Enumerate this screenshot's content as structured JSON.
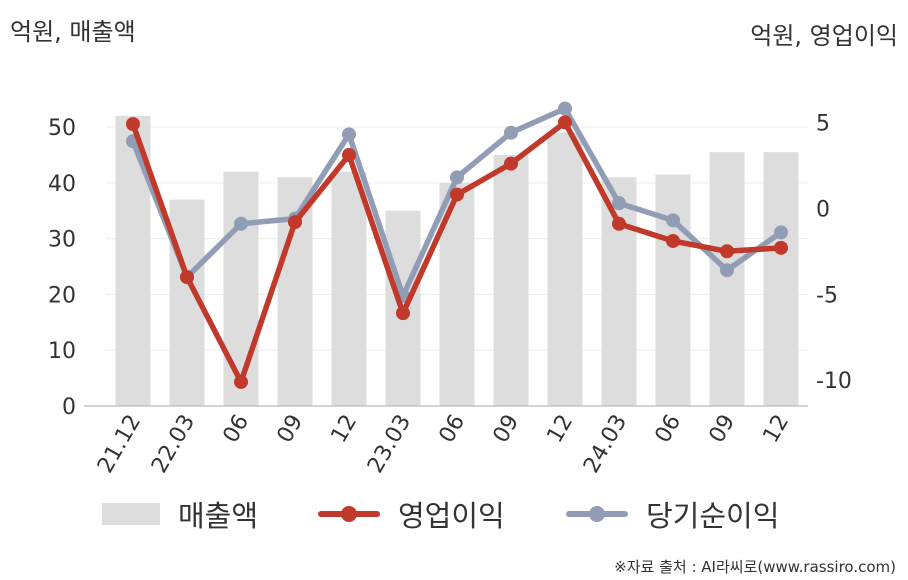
{
  "chart_data": {
    "type": "bar+line",
    "categories": [
      "21.12",
      "22.03",
      "06",
      "09",
      "12",
      "23.03",
      "06",
      "09",
      "12",
      "24.03",
      "06",
      "09",
      "12"
    ],
    "ylabel_left": "억원, 매출액",
    "ylabel_right": "억원, 영업이익",
    "y_left": {
      "min": 0,
      "max": 57,
      "ticks": [
        0,
        10,
        20,
        30,
        40,
        50
      ]
    },
    "y_right": {
      "min": -11.5,
      "max": 7,
      "ticks": [
        -10,
        -5,
        0,
        5
      ]
    },
    "grid": true,
    "legend_position": "bottom",
    "series": [
      {
        "name": "매출액",
        "type": "bar",
        "axis": "left",
        "color": "#dddddd",
        "values": [
          52,
          37,
          42,
          41,
          42,
          35,
          40,
          45,
          49,
          41,
          41.5,
          45.5,
          45.5
        ]
      },
      {
        "name": "영업이익",
        "type": "line",
        "axis": "right",
        "color": "#c0392b",
        "values": [
          4.9,
          -4.0,
          -10.1,
          -0.8,
          3.1,
          -6.1,
          0.8,
          2.6,
          5.0,
          -0.9,
          -1.9,
          -2.5,
          -2.3
        ]
      },
      {
        "name": "당기순이익",
        "type": "line",
        "axis": "right",
        "color": "#919db5",
        "values": [
          3.9,
          -4.0,
          -0.9,
          -0.6,
          4.3,
          -5.1,
          1.8,
          4.4,
          5.8,
          0.3,
          -0.7,
          -3.6,
          -1.4
        ]
      }
    ]
  },
  "source": "※자료 출처 : AI라씨로(www.rassiro.com)"
}
